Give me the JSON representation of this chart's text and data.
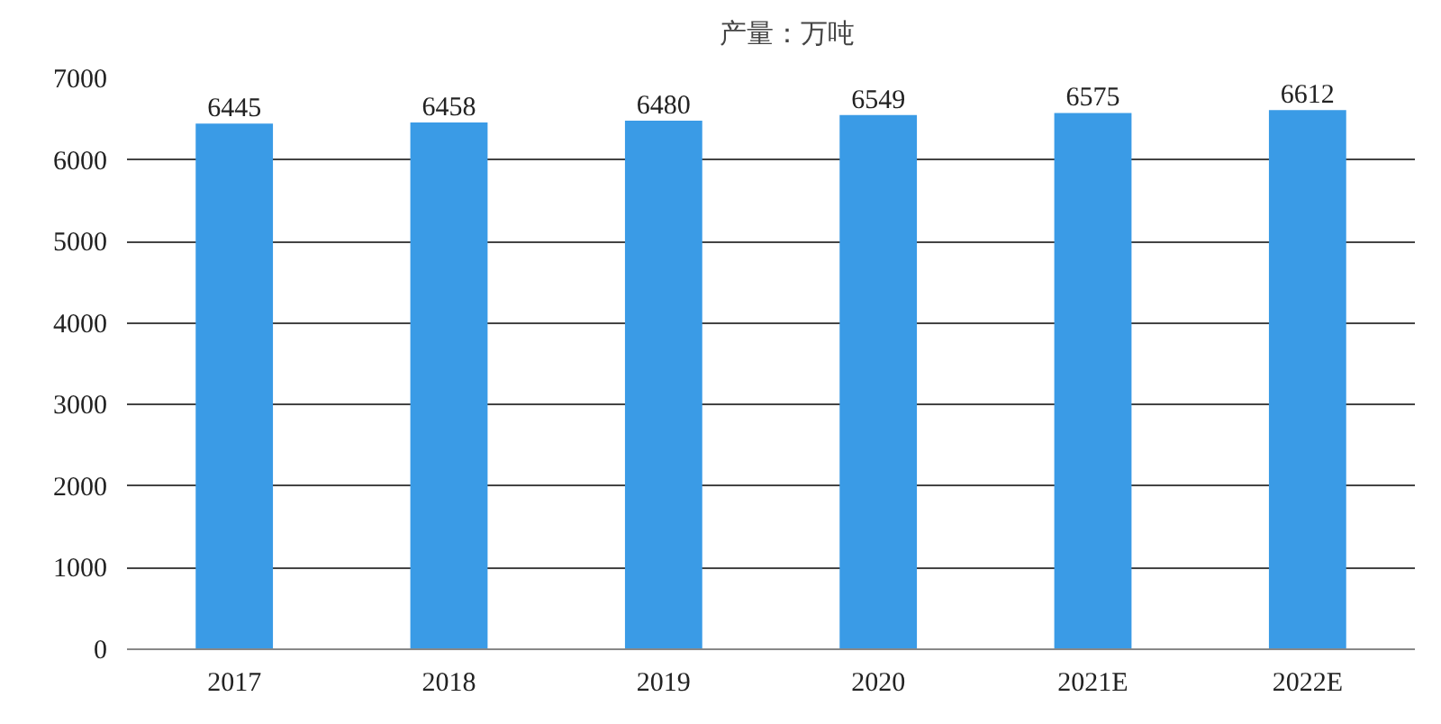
{
  "chart_data": {
    "type": "bar",
    "categories": [
      "2017",
      "2018",
      "2019",
      "2020",
      "2021E",
      "2022E"
    ],
    "series": [
      {
        "name": "产量：万吨",
        "color": "#3a9be6",
        "values": [
          6445,
          6458,
          6480,
          6549,
          6575,
          6612
        ]
      }
    ],
    "ylim": [
      0,
      7000
    ],
    "yticks": [
      0,
      1000,
      2000,
      3000,
      4000,
      5000,
      6000,
      7000
    ],
    "grid": "y",
    "legend": "top",
    "data_labels": true
  }
}
